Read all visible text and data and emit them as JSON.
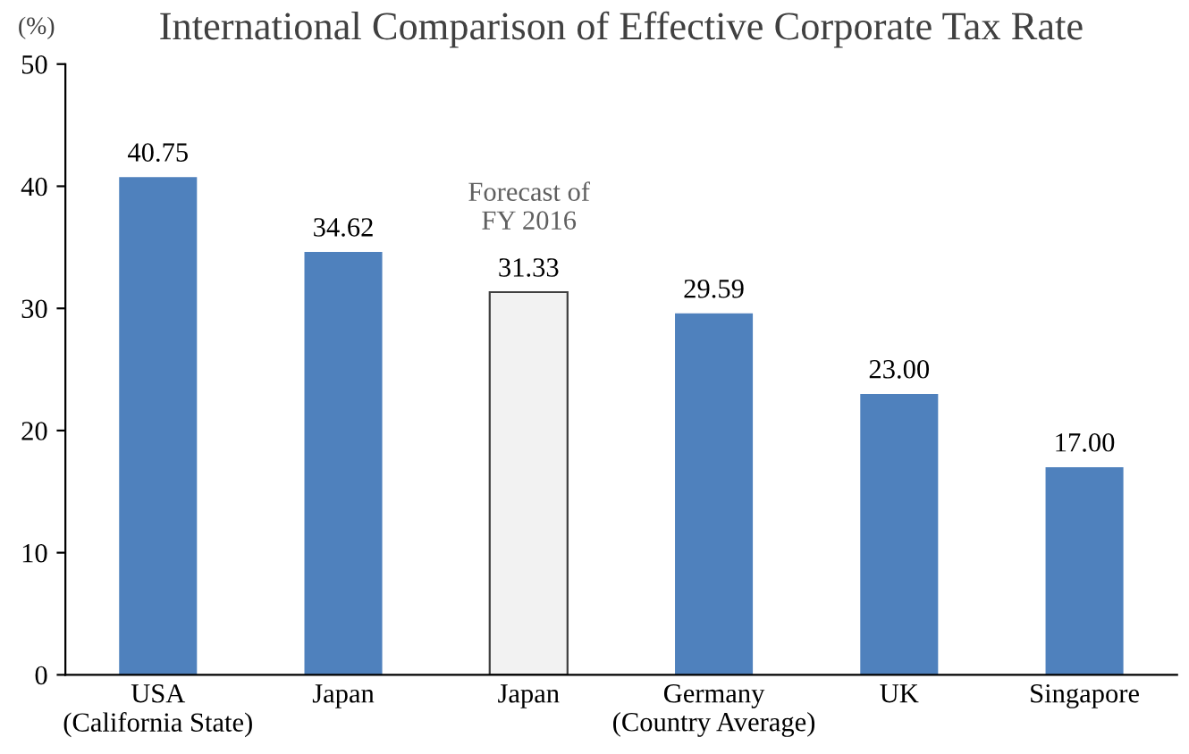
{
  "chart_data": {
    "type": "bar",
    "title": "International Comparison of Effective Corporate Tax Rate",
    "ylabel": "(%)",
    "categories": [
      "USA\n(California State)",
      "Japan",
      "Japan",
      "Germany\n(Country Average)",
      "UK",
      "Singapore"
    ],
    "values": [
      40.75,
      34.62,
      31.33,
      29.59,
      23.0,
      17.0
    ],
    "colors": [
      "#4f81bd",
      "#4f81bd",
      "#f2f2f2",
      "#4f81bd",
      "#4f81bd",
      "#4f81bd"
    ],
    "value_labels": [
      "40.75",
      "34.62",
      "31.33",
      "29.59",
      "23.00",
      "17.00"
    ],
    "annotations": [
      "Forecast of\nFY 2016"
    ],
    "ylim": [
      0,
      50
    ],
    "yticks": [
      0,
      10,
      20,
      30,
      40,
      50
    ],
    "grid": false
  }
}
